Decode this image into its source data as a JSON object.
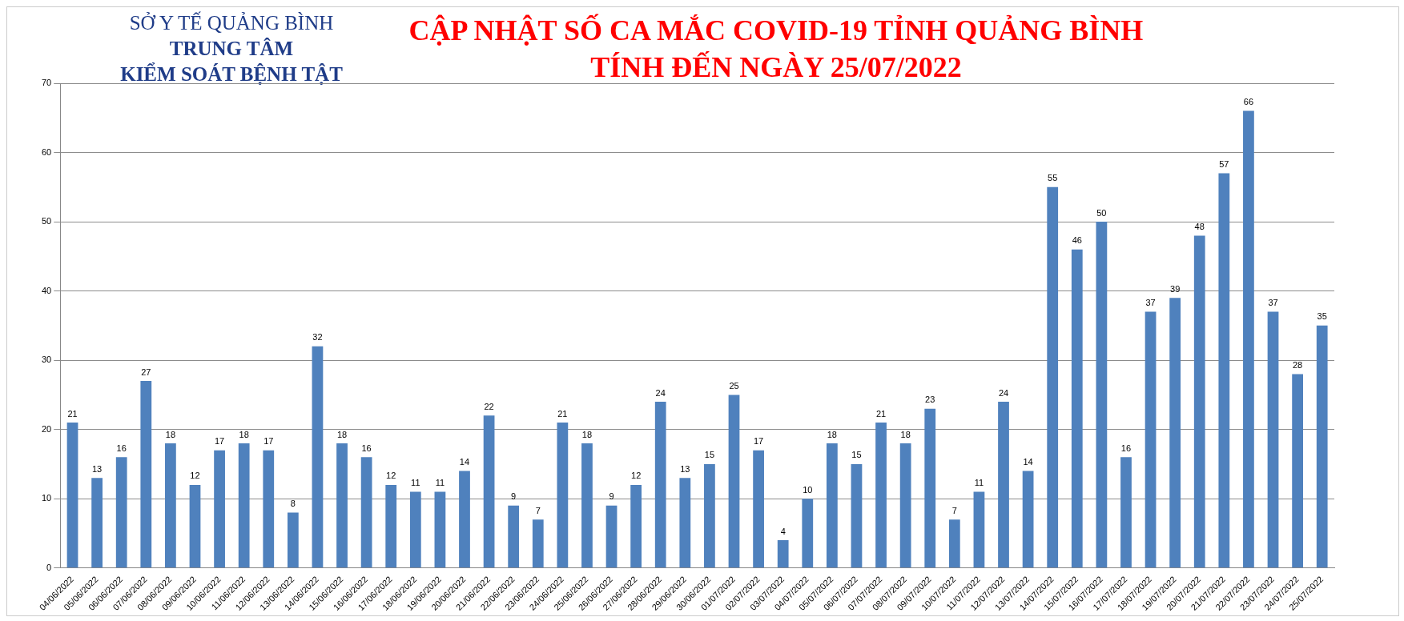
{
  "chart_data": {
    "type": "bar",
    "title": "CẬP NHẬT SỐ CA MẮC COVID-19 TỈNH QUẢNG BÌNH",
    "subtitle": "TÍNH ĐẾN NGÀY 25/07/2022",
    "annotations": [
      "SỞ Y TẾ QUẢNG BÌNH",
      "TRUNG TÂM",
      "KIỂM SOÁT BỆNH TẬT"
    ],
    "categories": [
      "04/06/2022",
      "05/06/2022",
      "06/06/2022",
      "07/06/2022",
      "08/06/2022",
      "09/06/2022",
      "10/06/2022",
      "11/06/2022",
      "12/06/2022",
      "13/06/2022",
      "14/06/2022",
      "15/06/2022",
      "16/06/2022",
      "17/06/2022",
      "18/06/2022",
      "19/06/2022",
      "20/06/2022",
      "21/06/2022",
      "22/06/2022",
      "23/06/2022",
      "24/06/2022",
      "25/06/2022",
      "26/06/2022",
      "27/06/2022",
      "28/06/2022",
      "29/06/2022",
      "30/06/2022",
      "01/07/2022",
      "02/07/2022",
      "03/07/2022",
      "04/07/2022",
      "05/07/2022",
      "06/07/2022",
      "07/07/2022",
      "08/07/2022",
      "09/07/2022",
      "10/07/2022",
      "11/07/2022",
      "12/07/2022",
      "13/07/2022",
      "14/07/2022",
      "15/07/2022",
      "16/07/2022",
      "17/07/2022",
      "18/07/2022",
      "19/07/2022",
      "20/07/2022",
      "21/07/2022",
      "22/07/2022",
      "23/07/2022",
      "24/07/2022",
      "25/07/2022"
    ],
    "values": [
      21,
      13,
      16,
      27,
      18,
      12,
      17,
      18,
      17,
      8,
      32,
      18,
      16,
      12,
      11,
      11,
      14,
      22,
      9,
      7,
      21,
      18,
      9,
      12,
      24,
      13,
      15,
      25,
      17,
      4,
      10,
      18,
      15,
      21,
      18,
      23,
      7,
      11,
      24,
      14,
      55,
      46,
      50,
      16,
      37,
      39,
      48,
      57,
      66,
      37,
      28,
      35
    ],
    "color": "#4f81bd",
    "ylim": [
      0,
      70
    ],
    "yticks": [
      0,
      10,
      20,
      30,
      40,
      50,
      60,
      70
    ],
    "grid": "y",
    "data_labels": true,
    "legend": false
  }
}
